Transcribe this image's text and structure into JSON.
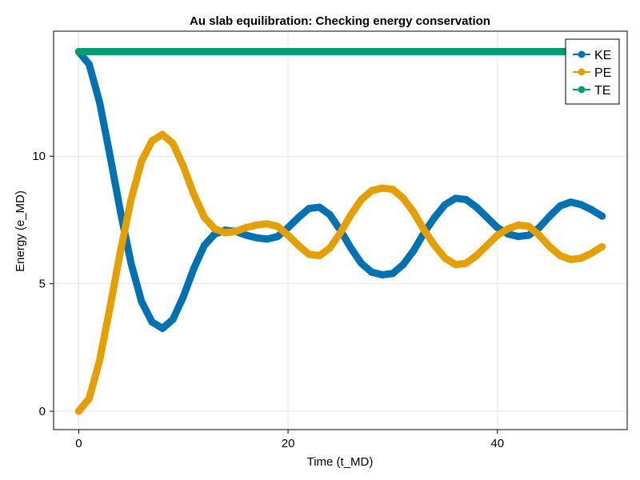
{
  "chart_data": {
    "type": "scatter",
    "title": "Au slab equilibration: Checking energy conservation",
    "xlabel": "Time (t_MD)",
    "ylabel": "Energy (e_MD)",
    "xlim": [
      -2.4,
      52.4
    ],
    "ylim": [
      -0.72,
      14.9
    ],
    "xticks": [
      0,
      20,
      40
    ],
    "yticks": [
      0,
      5,
      10
    ],
    "xtick_labels": [
      "0",
      "20",
      "40"
    ],
    "ytick_labels": [
      "0",
      "5",
      "10"
    ],
    "grid": true,
    "legend_position": "top-right",
    "series": [
      {
        "name": "KE",
        "color": "#0072b2",
        "x": [
          0,
          1,
          2,
          3,
          4,
          5,
          6,
          7,
          8,
          9,
          10,
          11,
          12,
          13,
          14,
          15,
          16,
          17,
          18,
          19,
          20,
          21,
          22,
          23,
          24,
          25,
          26,
          27,
          28,
          29,
          30,
          31,
          32,
          33,
          34,
          35,
          36,
          37,
          38,
          39,
          40,
          41,
          42,
          43,
          44,
          45,
          46,
          47,
          48,
          49,
          50
        ],
        "y": [
          14.1,
          13.6,
          12.1,
          10.0,
          7.8,
          5.8,
          4.3,
          3.5,
          3.25,
          3.6,
          4.5,
          5.6,
          6.5,
          6.95,
          7.1,
          7.05,
          6.9,
          6.8,
          6.75,
          6.85,
          7.2,
          7.6,
          7.95,
          8.0,
          7.7,
          7.1,
          6.4,
          5.8,
          5.45,
          5.35,
          5.4,
          5.75,
          6.3,
          7.0,
          7.6,
          8.1,
          8.35,
          8.3,
          8.0,
          7.6,
          7.2,
          6.95,
          6.85,
          6.9,
          7.2,
          7.65,
          8.05,
          8.2,
          8.1,
          7.9,
          7.65
        ]
      },
      {
        "name": "PE",
        "color": "#e69f00",
        "x": [
          0,
          1,
          2,
          3,
          4,
          5,
          6,
          7,
          8,
          9,
          10,
          11,
          12,
          13,
          14,
          15,
          16,
          17,
          18,
          19,
          20,
          21,
          22,
          23,
          24,
          25,
          26,
          27,
          28,
          29,
          30,
          31,
          32,
          33,
          34,
          35,
          36,
          37,
          38,
          39,
          40,
          41,
          42,
          43,
          44,
          45,
          46,
          47,
          48,
          49,
          50
        ],
        "y": [
          0.0,
          0.5,
          2.0,
          4.1,
          6.3,
          8.3,
          9.8,
          10.6,
          10.85,
          10.5,
          9.6,
          8.5,
          7.6,
          7.15,
          7.0,
          7.05,
          7.2,
          7.3,
          7.35,
          7.25,
          6.9,
          6.5,
          6.15,
          6.1,
          6.4,
          7.0,
          7.7,
          8.3,
          8.65,
          8.75,
          8.7,
          8.35,
          7.8,
          7.1,
          6.5,
          6.0,
          5.75,
          5.8,
          6.1,
          6.5,
          6.9,
          7.15,
          7.3,
          7.25,
          6.9,
          6.45,
          6.1,
          5.95,
          6.0,
          6.2,
          6.45
        ]
      },
      {
        "name": "TE",
        "color": "#009e73",
        "x": [
          0,
          1,
          2,
          3,
          4,
          5,
          6,
          7,
          8,
          9,
          10,
          11,
          12,
          13,
          14,
          15,
          16,
          17,
          18,
          19,
          20,
          21,
          22,
          23,
          24,
          25,
          26,
          27,
          28,
          29,
          30,
          31,
          32,
          33,
          34,
          35,
          36,
          37,
          38,
          39,
          40,
          41,
          42,
          43,
          44,
          45,
          46,
          47,
          48,
          49,
          50
        ],
        "y": [
          14.1,
          14.1,
          14.1,
          14.1,
          14.1,
          14.1,
          14.1,
          14.1,
          14.1,
          14.1,
          14.1,
          14.1,
          14.1,
          14.1,
          14.1,
          14.1,
          14.1,
          14.1,
          14.1,
          14.1,
          14.1,
          14.1,
          14.1,
          14.1,
          14.1,
          14.1,
          14.1,
          14.1,
          14.1,
          14.1,
          14.1,
          14.1,
          14.1,
          14.1,
          14.1,
          14.1,
          14.1,
          14.1,
          14.1,
          14.1,
          14.1,
          14.1,
          14.1,
          14.1,
          14.1,
          14.1,
          14.1,
          14.1,
          14.1,
          14.1,
          14.1
        ]
      }
    ]
  }
}
